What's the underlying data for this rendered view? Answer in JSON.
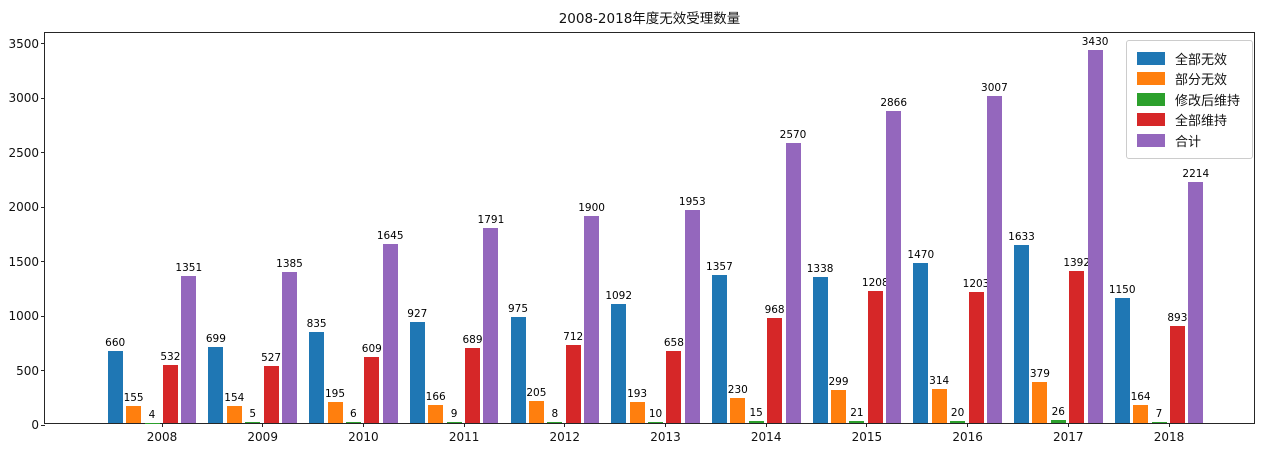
{
  "chart_data": {
    "type": "bar",
    "title": "2008-2018年度无效受理数量",
    "categories": [
      "2008",
      "2009",
      "2010",
      "2011",
      "2012",
      "2013",
      "2014",
      "2015",
      "2016",
      "2017",
      "2018"
    ],
    "series": [
      {
        "name": "全部无效",
        "color": "#1f77b4",
        "values": [
          660,
          699,
          835,
          927,
          975,
          1092,
          1357,
          1338,
          1470,
          1633,
          1150
        ]
      },
      {
        "name": "部分无效",
        "color": "#ff7f0e",
        "values": [
          155,
          154,
          195,
          166,
          205,
          193,
          230,
          299,
          314,
          379,
          164
        ]
      },
      {
        "name": "修改后维持",
        "color": "#2ca02c",
        "values": [
          4,
          5,
          6,
          9,
          8,
          10,
          15,
          21,
          20,
          26,
          7
        ]
      },
      {
        "name": "全部维持",
        "color": "#d62728",
        "values": [
          532,
          527,
          609,
          689,
          712,
          658,
          968,
          1208,
          1203,
          1392,
          893
        ]
      },
      {
        "name": "合计",
        "color": "#9467bd",
        "values": [
          1351,
          1385,
          1645,
          1791,
          1900,
          1953,
          2570,
          2866,
          3007,
          3430,
          2214
        ]
      }
    ],
    "xlabel": "",
    "ylabel": "",
    "ylim": [
      0,
      3600
    ],
    "yticks": [
      0,
      500,
      1000,
      1500,
      2000,
      2500,
      3000,
      3500
    ],
    "grid": false,
    "bar_value_labels": true,
    "legend_position": "upper right"
  }
}
